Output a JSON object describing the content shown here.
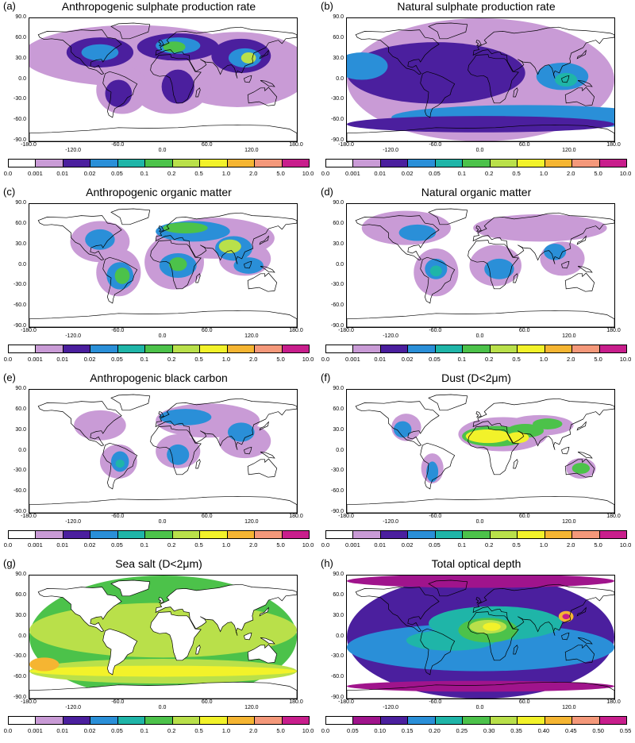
{
  "panels": [
    {
      "letter": "(a)",
      "title": "Anthropogenic sulphate production rate",
      "legend": "standard"
    },
    {
      "letter": "(b)",
      "title": "Natural sulphate production rate",
      "legend": "standard"
    },
    {
      "letter": "(c)",
      "title": "Anthropogenic organic matter",
      "legend": "standard"
    },
    {
      "letter": "(d)",
      "title": "Natural organic matter",
      "legend": "standard"
    },
    {
      "letter": "(e)",
      "title": "Anthropogenic black carbon",
      "legend": "standard"
    },
    {
      "letter": "(f)",
      "title": "Dust (D<2μm)",
      "legend": "standard"
    },
    {
      "letter": "(g)",
      "title": "Sea salt (D<2μm)",
      "legend": "standard"
    },
    {
      "letter": "(h)",
      "title": "Total optical depth",
      "legend": "optical"
    }
  ],
  "axes": {
    "yticks": [
      "90.0",
      "60.0",
      "30.0",
      "0.0",
      "-30.0",
      "-60.0",
      "-90.0"
    ],
    "xticks": [
      "-180.0",
      "-120.0",
      "-60.0",
      "0.0",
      "60.0",
      "120.0",
      "180.0"
    ]
  },
  "legends": {
    "standard": {
      "labels": [
        "0.0",
        "0.001",
        "0.01",
        "0.02",
        "0.05",
        "0.1",
        "0.2",
        "0.5",
        "1.0",
        "2.0",
        "5.0",
        "10.0"
      ],
      "colors": [
        "#ffffff",
        "#c99bd6",
        "#4b1f9e",
        "#2a8fd8",
        "#1fb5a8",
        "#4cc24a",
        "#b9e04a",
        "#f2f22a",
        "#f5b532",
        "#f4987a",
        "#c81e8c"
      ]
    },
    "optical": {
      "labels": [
        "0.0",
        "0.05",
        "0.10",
        "0.15",
        "0.20",
        "0.25",
        "0.30",
        "0.35",
        "0.40",
        "0.45",
        "0.50",
        "0.55"
      ],
      "colors": [
        "#ffffff",
        "#a0148c",
        "#4b1f9e",
        "#2a8fd8",
        "#1fb5a8",
        "#4cc24a",
        "#b9e04a",
        "#f2f22a",
        "#f5b532",
        "#f4987a",
        "#c81e8c"
      ]
    }
  }
}
